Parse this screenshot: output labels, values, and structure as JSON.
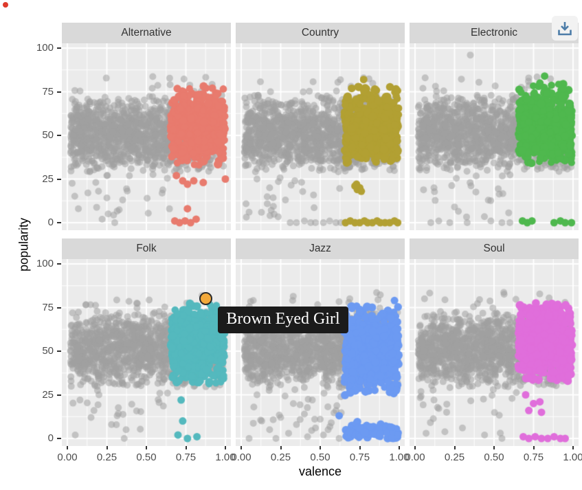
{
  "window": {
    "background": "#FFFFFF"
  },
  "indicator": {
    "color": "#DF3A2B"
  },
  "toolbar": {
    "download_button": {
      "icon": "download-icon",
      "icon_color": "#4C7CA8",
      "bg": "#F2F2F2"
    }
  },
  "chart_data": {
    "type": "scatter",
    "title": "",
    "xlabel": "valence",
    "ylabel": "popularity",
    "xlim": [
      0,
      1
    ],
    "ylim": [
      0,
      100
    ],
    "grid": true,
    "legend": "none",
    "panel_bg": "#EBEBEB",
    "strip_bg": "#D9D9D9",
    "grid_color": "#FFFFFF",
    "x_tick_values": [
      0,
      0.25,
      0.5,
      0.75,
      1
    ],
    "x_tick_labels": [
      "0.00",
      "0.25",
      "0.50",
      "0.75",
      "1.00"
    ],
    "y_tick_values": [
      100,
      75,
      50,
      25,
      0
    ],
    "y_tick_labels": [
      "100",
      "75",
      "50",
      "25",
      "0"
    ],
    "background_series": {
      "name": "all-genres-gray",
      "color": "#A0A0A0",
      "opacity": 0.55,
      "count": 1400,
      "x_range": [
        0.02,
        0.99
      ],
      "y_center": 51,
      "y_spread": 10.5,
      "y_band": [
        29,
        73
      ],
      "top_scatter_count": 14,
      "top_scatter_y": [
        74,
        84
      ],
      "low_scatter_count": 20,
      "low_scatter_y": [
        3,
        28
      ]
    },
    "facets": [
      {
        "label": "Alternative",
        "color": "#E87B6E",
        "seed": 101,
        "highlight": {
          "count": 560,
          "x_range": [
            0.655,
            0.995
          ],
          "y_center": 55,
          "y_spread": 10.5,
          "y_band": [
            33,
            80
          ]
        },
        "outliers": [
          [
            0.69,
            27
          ],
          [
            0.73,
            24
          ],
          [
            0.76,
            22
          ],
          [
            0.8,
            24
          ],
          [
            0.86,
            23
          ],
          [
            1.0,
            25
          ],
          [
            0.76,
            8
          ],
          [
            0.68,
            1
          ],
          [
            0.71,
            0
          ],
          [
            0.745,
            1
          ],
          [
            0.78,
            0
          ],
          [
            0.815,
            2
          ]
        ],
        "gray_outliers": [
          [
            0.18,
            23
          ],
          [
            0.25,
            27
          ],
          [
            0.13,
            17
          ],
          [
            0.35,
            13
          ],
          [
            0.07,
            8
          ],
          [
            0.22,
            2
          ],
          [
            0.3,
            0
          ]
        ]
      },
      {
        "label": "Country",
        "color": "#B2A033",
        "seed": 202,
        "highlight": {
          "count": 560,
          "x_range": [
            0.655,
            0.995
          ],
          "y_center": 55,
          "y_spread": 10.5,
          "y_band": [
            32,
            78
          ]
        },
        "outliers": [
          [
            0.775,
            82
          ],
          [
            0.74,
            78
          ],
          [
            0.72,
            21
          ],
          [
            0.735,
            19
          ],
          [
            0.75,
            20
          ],
          [
            0.76,
            18
          ],
          [
            0.73,
            22
          ],
          [
            0.66,
            0
          ],
          [
            0.69,
            1
          ],
          [
            0.72,
            0
          ],
          [
            0.75,
            0
          ],
          [
            0.78,
            1
          ],
          [
            0.8,
            0
          ],
          [
            0.83,
            0
          ],
          [
            0.86,
            1
          ],
          [
            0.88,
            0
          ],
          [
            0.91,
            0
          ],
          [
            0.94,
            0
          ],
          [
            0.97,
            1
          ],
          [
            0.99,
            0
          ]
        ],
        "gray_outliers": [
          [
            0.31,
            0
          ],
          [
            0.35,
            0
          ],
          [
            0.4,
            1
          ],
          [
            0.44,
            0
          ],
          [
            0.47,
            0
          ],
          [
            0.52,
            0
          ],
          [
            0.56,
            1
          ],
          [
            0.6,
            0
          ],
          [
            0.63,
            0
          ],
          [
            0.1,
            25
          ],
          [
            0.18,
            20
          ],
          [
            0.28,
            13
          ],
          [
            0.05,
            6
          ]
        ]
      },
      {
        "label": "Electronic",
        "color": "#4FB84E",
        "seed": 303,
        "highlight": {
          "count": 580,
          "x_range": [
            0.655,
            0.995
          ],
          "y_center": 56,
          "y_spread": 10.5,
          "y_band": [
            34,
            80
          ]
        },
        "outliers": [
          [
            0.82,
            84
          ],
          [
            0.79,
            80
          ],
          [
            0.68,
            1
          ],
          [
            0.71,
            0
          ],
          [
            0.74,
            1
          ],
          [
            0.88,
            0
          ],
          [
            0.92,
            1
          ],
          [
            0.95,
            0
          ],
          [
            0.99,
            0
          ]
        ],
        "gray_outliers": [
          [
            0.35,
            96
          ],
          [
            0.05,
            77
          ],
          [
            0.1,
            0
          ],
          [
            0.15,
            1
          ],
          [
            0.22,
            0
          ],
          [
            0.33,
            0
          ],
          [
            0.48,
            1
          ],
          [
            0.55,
            0
          ],
          [
            0.6,
            0
          ],
          [
            0.12,
            20
          ],
          [
            0.25,
            9
          ]
        ]
      },
      {
        "label": "Folk",
        "color": "#54B9BE",
        "seed": 404,
        "highlight": {
          "count": 560,
          "x_range": [
            0.655,
            0.995
          ],
          "y_center": 54,
          "y_spread": 10.5,
          "y_band": [
            31,
            78
          ]
        },
        "outliers": [
          [
            0.72,
            22
          ],
          [
            0.73,
            10
          ],
          [
            0.7,
            2
          ],
          [
            0.76,
            0
          ],
          [
            0.82,
            1
          ]
        ],
        "gray_outliers": [
          [
            0.08,
            22
          ],
          [
            0.15,
            12
          ],
          [
            0.28,
            8
          ],
          [
            0.05,
            2
          ],
          [
            0.36,
            0
          ],
          [
            0.2,
            25
          ]
        ]
      },
      {
        "label": "Jazz",
        "color": "#6C9AF2",
        "seed": 505,
        "highlight": {
          "count": 540,
          "x_range": [
            0.655,
            0.995
          ],
          "y_center": 50,
          "y_spread": 13,
          "y_band": [
            24,
            76
          ]
        },
        "bottom_blob": {
          "count": 95,
          "x_range": [
            0.66,
            0.995
          ],
          "y_center": 3,
          "y_spread": 2.8,
          "y_band": [
            0,
            10
          ]
        },
        "outliers": [
          [
            0.97,
            79
          ],
          [
            0.62,
            13
          ]
        ],
        "gray_outliers": [
          [
            0.08,
            18
          ],
          [
            0.13,
            10
          ],
          [
            0.18,
            5
          ],
          [
            0.25,
            12
          ],
          [
            0.3,
            3
          ],
          [
            0.35,
            8
          ],
          [
            0.42,
            1
          ],
          [
            0.05,
            0
          ],
          [
            0.22,
            0
          ],
          [
            0.47,
            6
          ],
          [
            0.52,
            2
          ],
          [
            0.57,
            9
          ],
          [
            0.62,
            0
          ],
          [
            0.1,
            25
          ],
          [
            0.33,
            20
          ],
          [
            0.4,
            14
          ],
          [
            0.5,
            11
          ],
          [
            0.55,
            5
          ],
          [
            0.6,
            16
          ],
          [
            0.45,
            22
          ]
        ]
      },
      {
        "label": "Soul",
        "color": "#E06EDB",
        "seed": 606,
        "highlight": {
          "count": 560,
          "x_range": [
            0.655,
            0.995
          ],
          "y_center": 55,
          "y_spread": 10.5,
          "y_band": [
            32,
            78
          ]
        },
        "outliers": [
          [
            0.7,
            25
          ],
          [
            0.75,
            20
          ],
          [
            0.79,
            21
          ],
          [
            0.72,
            16
          ],
          [
            0.8,
            15
          ],
          [
            0.685,
            1
          ],
          [
            0.72,
            0
          ],
          [
            0.76,
            1
          ],
          [
            0.8,
            0
          ],
          [
            0.84,
            0
          ],
          [
            0.88,
            1
          ],
          [
            0.92,
            0
          ],
          [
            0.95,
            0
          ]
        ],
        "gray_outliers": [
          [
            0.06,
            80
          ],
          [
            0.12,
            22
          ],
          [
            0.2,
            15
          ],
          [
            0.3,
            6
          ],
          [
            0.44,
            2
          ],
          [
            0.55,
            0
          ],
          [
            0.07,
            3
          ]
        ]
      }
    ],
    "tooltip": {
      "facet": "Folk",
      "label": "Brown Eyed Girl",
      "x": 0.88,
      "y": 80,
      "point_color": "#F2A93B",
      "point_border": "#2B2B2B",
      "bg": "#1B1B1B",
      "text_color": "#FFFFFF"
    }
  }
}
